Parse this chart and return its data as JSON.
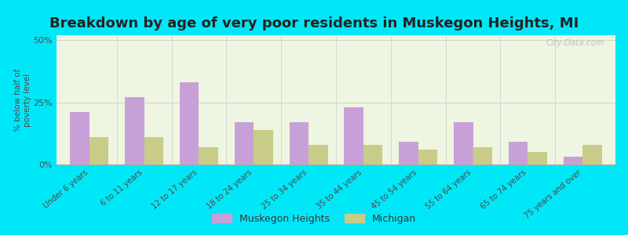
{
  "title": "Breakdown by age of very poor residents in Muskegon Heights, MI",
  "categories": [
    "Under 6 years",
    "6 to 11 years",
    "12 to 17 years",
    "18 to 24 years",
    "25 to 34 years",
    "35 to 44 years",
    "45 to 54 years",
    "55 to 64 years",
    "65 to 74 years",
    "75 years and over"
  ],
  "muskegon_values": [
    21,
    27,
    33,
    17,
    17,
    23,
    9,
    17,
    9,
    3
  ],
  "michigan_values": [
    11,
    11,
    7,
    14,
    8,
    8,
    6,
    7,
    5,
    8
  ],
  "muskegon_color": "#c8a0d8",
  "michigan_color": "#c8cc88",
  "background_outer": "#00e8f8",
  "background_plot": "#eef5e0",
  "ylabel": "% below half of\npoverty level",
  "ylim": [
    0,
    52
  ],
  "yticks": [
    0,
    25,
    50
  ],
  "ytick_labels": [
    "0%",
    "25%",
    "50%"
  ],
  "bar_width": 0.35,
  "title_fontsize": 13,
  "legend_labels": [
    "Muskegon Heights",
    "Michigan"
  ],
  "watermark": "City-Data.com"
}
